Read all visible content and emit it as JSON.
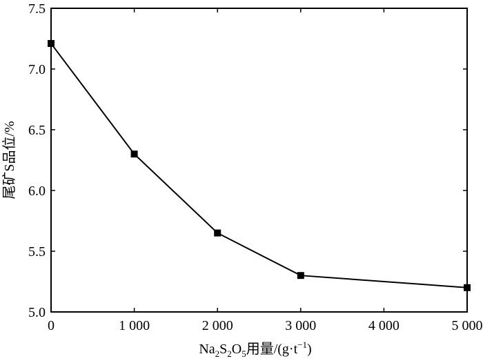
{
  "chart_data": {
    "type": "line",
    "x": [
      0,
      1000,
      2000,
      3000,
      5000
    ],
    "series": [
      {
        "values": [
          7.21,
          6.3,
          5.65,
          5.3,
          5.2
        ]
      }
    ],
    "xlabel": "Na2S2O5用量/(g·t−1)",
    "xlabel_parts": {
      "base1": "Na",
      "sub1": "2",
      "base2": "S",
      "sub2": "2",
      "base3": "O",
      "sub3": "5",
      "suffix1": "用量/(g·t",
      "sup": "−1",
      "suffix2": ")"
    },
    "ylabel": "尾矿S品位/%",
    "xlim": [
      0,
      5000
    ],
    "ylim": [
      5.0,
      7.5
    ],
    "xticks": [
      0,
      1000,
      2000,
      3000,
      4000,
      5000
    ],
    "xtick_labels": [
      "0",
      "1 000",
      "2 000",
      "3 000",
      "4 000",
      "5 000"
    ],
    "yticks": [
      5.0,
      5.5,
      6.0,
      6.5,
      7.0,
      7.5
    ],
    "ytick_labels": [
      "5.0",
      "5.5",
      "6.0",
      "6.5",
      "7.0",
      "7.5"
    ],
    "grid": false,
    "marker": "square",
    "color": "#000000"
  }
}
